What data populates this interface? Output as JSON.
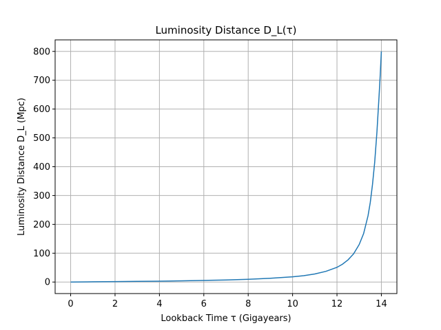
{
  "chart_data": {
    "type": "line",
    "title": "Luminosity Distance D_L(τ)",
    "xlabel": "Lookback Time τ (Gigayears)",
    "ylabel": "Luminosity Distance D_L (Mpc)",
    "xlim": [
      -0.7,
      14.7
    ],
    "ylim": [
      -40,
      840
    ],
    "xticks": [
      0,
      2,
      4,
      6,
      8,
      10,
      12,
      14
    ],
    "yticks": [
      0,
      100,
      200,
      300,
      400,
      500,
      600,
      700,
      800
    ],
    "grid": true,
    "series_color": "#1f77b4",
    "series": [
      {
        "x": [
          0,
          1,
          2,
          3,
          4,
          5,
          6,
          7,
          8,
          9,
          10,
          10.5,
          11,
          11.5,
          12,
          12.25,
          12.5,
          12.75,
          13,
          13.2,
          13.4,
          13.5,
          13.6,
          13.7,
          13.8,
          13.85,
          13.9,
          13.95,
          14
        ],
        "y": [
          0,
          0.8,
          1.4,
          2.2,
          3.0,
          4.0,
          5.5,
          7.0,
          9.5,
          13.0,
          18.0,
          22.0,
          28.0,
          37.0,
          51.0,
          62.0,
          77.0,
          98.0,
          130.0,
          168.0,
          230.0,
          276.0,
          338.0,
          416.0,
          520.0,
          585.0,
          650.0,
          720.0,
          800.0
        ]
      }
    ]
  }
}
